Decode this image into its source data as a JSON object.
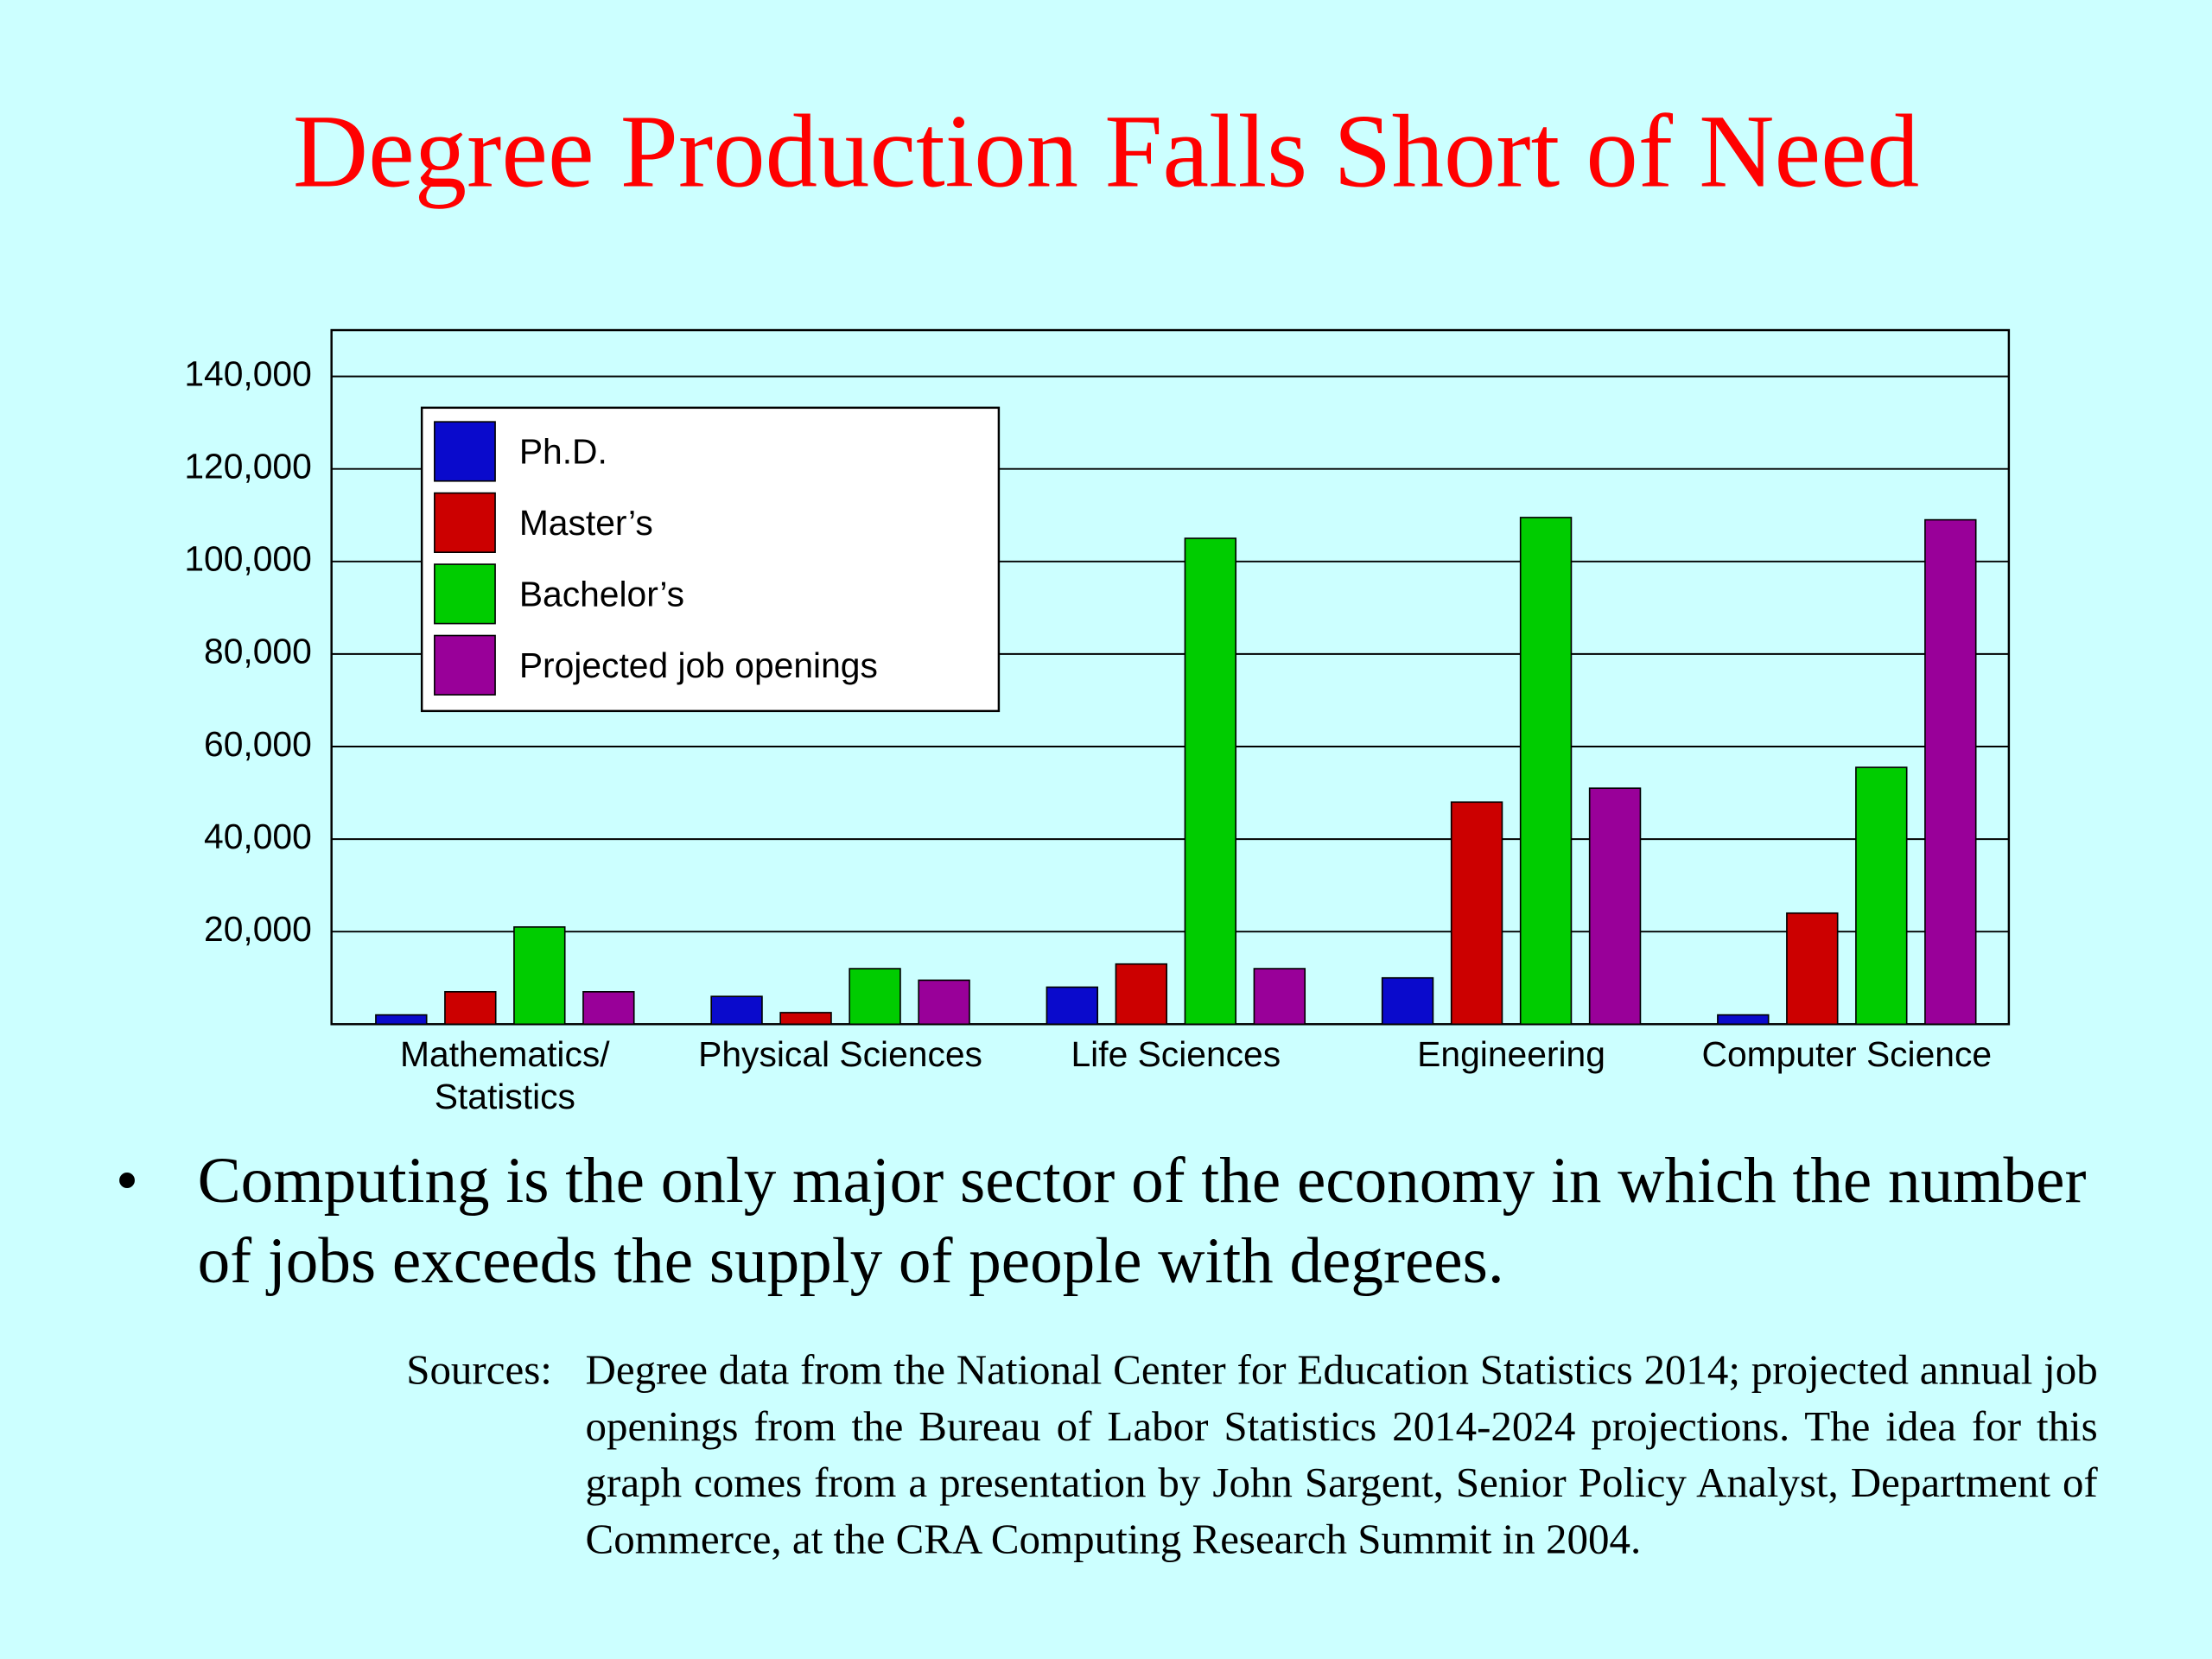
{
  "title": "Degree Production Falls Short of Need",
  "chart_data": {
    "type": "bar",
    "categories": [
      "Mathematics/ Statistics",
      "Physical Sciences",
      "Life Sciences",
      "Engineering",
      "Computer Science"
    ],
    "series": [
      {
        "name": "Ph.D.",
        "color": "#0a0acc",
        "values": [
          2000,
          6000,
          8000,
          10000,
          2000
        ]
      },
      {
        "name": "Master’s",
        "color": "#cc0000",
        "values": [
          7000,
          2500,
          13000,
          48000,
          24000
        ]
      },
      {
        "name": "Bachelor’s",
        "color": "#00cc00",
        "values": [
          21000,
          12000,
          105000,
          109500,
          55500
        ]
      },
      {
        "name": "Projected job openings",
        "color": "#990099",
        "values": [
          7000,
          9500,
          12000,
          51000,
          109000
        ]
      }
    ],
    "ylim": [
      0,
      150000
    ],
    "yticks": [
      {
        "value": 20000,
        "label": "20,000"
      },
      {
        "value": 40000,
        "label": "40,000"
      },
      {
        "value": 60000,
        "label": "60,000"
      },
      {
        "value": 80000,
        "label": "80,000"
      },
      {
        "value": 100000,
        "label": "100,000"
      },
      {
        "value": 120000,
        "label": "120,000"
      },
      {
        "value": 140000,
        "label": "140,000"
      }
    ],
    "grid": true,
    "legend": "upper left"
  },
  "bullet": "Computing is the only major sector of the economy in which the number of jobs exceeds the supply of people with degrees.",
  "sources": {
    "label": "Sources:",
    "text": "Degree data from the National Center for Education Statistics 2014; projected annual job openings from the Bureau of Labor Statistics 2014-2024 projections.  The idea for this graph comes from a presentation by John Sargent, Senior Policy Analyst, Department of Commerce, at the CRA Computing Research Summit in 2004."
  }
}
